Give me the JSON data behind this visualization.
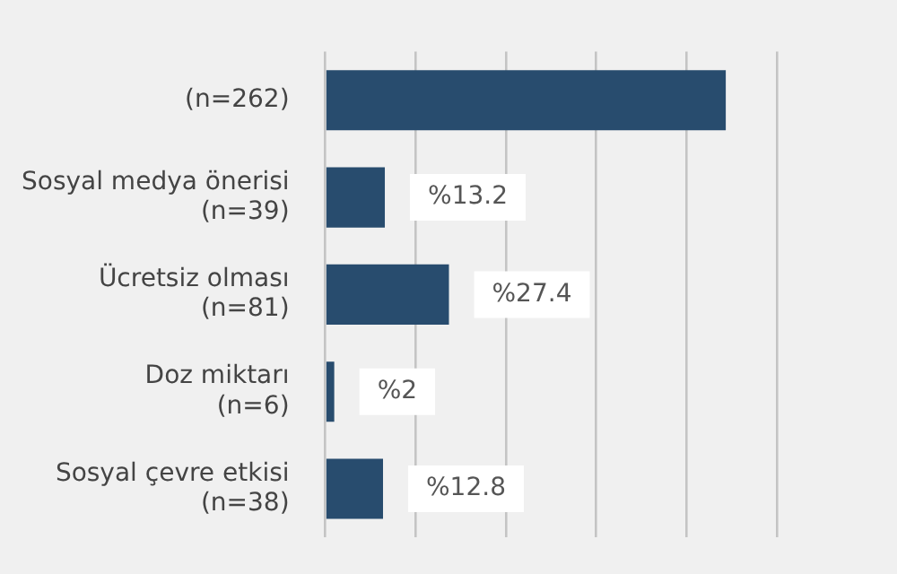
{
  "chart_data": {
    "type": "bar",
    "orientation": "horizontal",
    "categories": [
      "(n=262)",
      "Sosyal medya önerisi\n(n=39)",
      "Ücretsiz olması\n(n=81)",
      "Doz miktarı\n(n=6)",
      "Sosyal çevre etkisi\n(n=38)"
    ],
    "values": [
      88.7,
      13.2,
      27.4,
      2,
      12.8
    ],
    "value_labels": [
      null,
      "%13.2",
      "%27.4",
      "%2",
      "%12.8"
    ],
    "color": "#284c6e",
    "xlim": [
      0,
      100
    ],
    "xticks": [
      {
        "value": 0,
        "label": null
      },
      {
        "value": 20,
        "label": null
      },
      {
        "value": 40,
        "label": null
      },
      {
        "value": 60,
        "label": null
      },
      {
        "value": 80,
        "label": null
      },
      {
        "value": 100,
        "label": null
      }
    ],
    "tick_labels": "y",
    "grid": "x",
    "legend": false
  }
}
